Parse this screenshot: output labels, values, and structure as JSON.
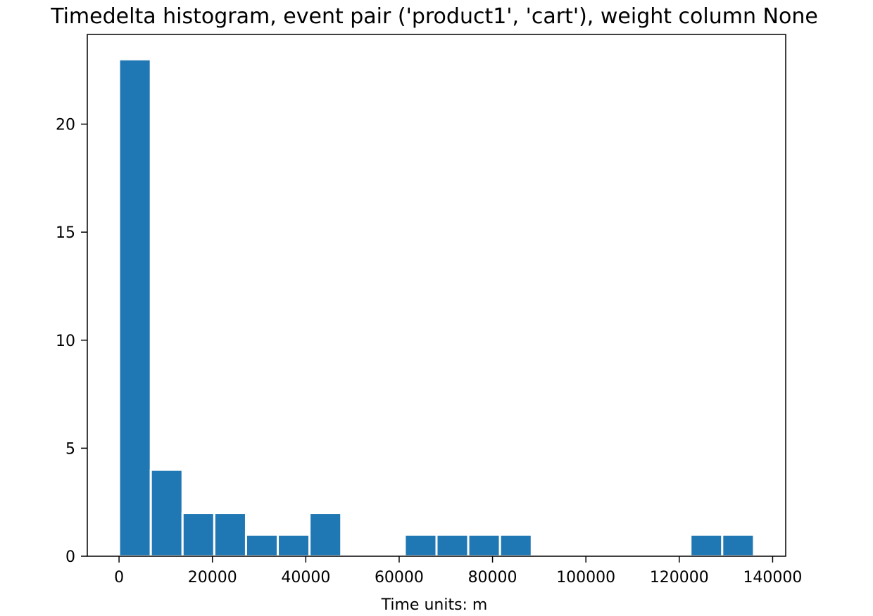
{
  "chart_data": {
    "type": "bar",
    "title": "Timedelta histogram, event pair ('product1', 'cart'), weight column None",
    "xlabel": "Time units: m",
    "ylabel": "",
    "bin_width": 6800,
    "bins": [
      {
        "x_start": 0,
        "count": 23
      },
      {
        "x_start": 6800,
        "count": 4
      },
      {
        "x_start": 13600,
        "count": 2
      },
      {
        "x_start": 20400,
        "count": 2
      },
      {
        "x_start": 27200,
        "count": 1
      },
      {
        "x_start": 34000,
        "count": 1
      },
      {
        "x_start": 40800,
        "count": 2
      },
      {
        "x_start": 47600,
        "count": 0
      },
      {
        "x_start": 54400,
        "count": 0
      },
      {
        "x_start": 61200,
        "count": 1
      },
      {
        "x_start": 68000,
        "count": 1
      },
      {
        "x_start": 74800,
        "count": 1
      },
      {
        "x_start": 81600,
        "count": 1
      },
      {
        "x_start": 88400,
        "count": 0
      },
      {
        "x_start": 95200,
        "count": 0
      },
      {
        "x_start": 102000,
        "count": 0
      },
      {
        "x_start": 108800,
        "count": 0
      },
      {
        "x_start": 115600,
        "count": 0
      },
      {
        "x_start": 122400,
        "count": 1
      },
      {
        "x_start": 129200,
        "count": 1
      }
    ],
    "xlim": [
      -6800,
      142800
    ],
    "ylim": [
      0,
      24.15
    ],
    "xticks": [
      0,
      20000,
      40000,
      60000,
      80000,
      100000,
      120000,
      140000
    ],
    "xtick_labels": [
      "0",
      "20000",
      "40000",
      "60000",
      "80000",
      "100000",
      "120000",
      "140000"
    ],
    "yticks": [
      0,
      5,
      10,
      15,
      20
    ],
    "ytick_labels": [
      "0",
      "5",
      "10",
      "15",
      "20"
    ],
    "bar_color": "#1f77b4",
    "bar_edge_color": "#ffffff",
    "grid": false,
    "legend": "none"
  }
}
